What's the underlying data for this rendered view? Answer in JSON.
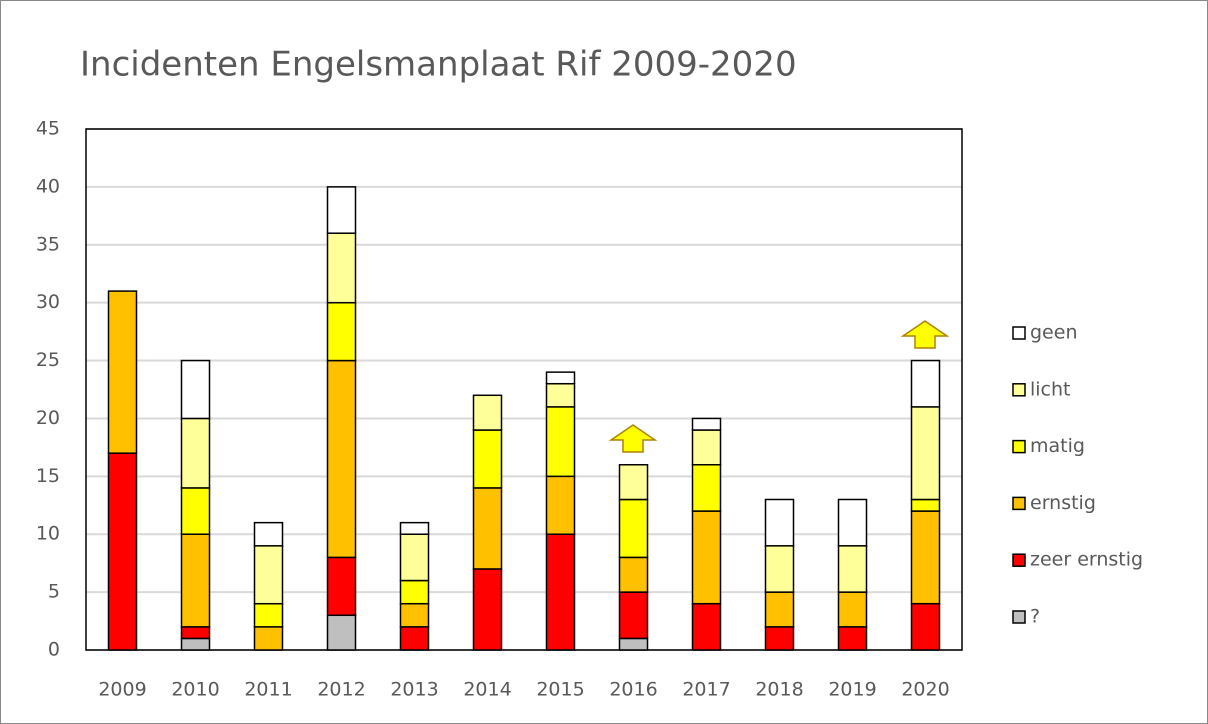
{
  "chart_data": {
    "type": "bar",
    "stacked": true,
    "title": "Incidenten Engelsmanplaat Rif 2009-2020",
    "categories": [
      "2009",
      "2010",
      "2011",
      "2012",
      "2013",
      "2014",
      "2015",
      "2016",
      "2017",
      "2018",
      "2019",
      "2020"
    ],
    "series": [
      {
        "name": "?",
        "color": "#bfbfbf",
        "values": [
          0,
          1,
          0,
          3,
          0,
          0,
          0,
          1,
          0,
          0,
          0,
          0
        ]
      },
      {
        "name": "zeer ernstig",
        "color": "#ff0000",
        "values": [
          17,
          1,
          0,
          5,
          2,
          7,
          10,
          4,
          4,
          2,
          2,
          4
        ]
      },
      {
        "name": "ernstig",
        "color": "#ffc000",
        "values": [
          14,
          8,
          2,
          17,
          2,
          7,
          5,
          3,
          8,
          3,
          3,
          8
        ]
      },
      {
        "name": "matig",
        "color": "#ffff00",
        "values": [
          0,
          4,
          2,
          5,
          2,
          5,
          6,
          5,
          4,
          0,
          0,
          1
        ]
      },
      {
        "name": "licht",
        "color": "#ffff99",
        "values": [
          0,
          6,
          5,
          6,
          4,
          3,
          2,
          3,
          3,
          4,
          4,
          8
        ]
      },
      {
        "name": "geen",
        "color": "#ffffff",
        "values": [
          0,
          5,
          2,
          4,
          1,
          0,
          1,
          0,
          1,
          4,
          4,
          4
        ]
      }
    ],
    "ylim": [
      0,
      45
    ],
    "yticks": [
      0,
      5,
      10,
      15,
      20,
      25,
      30,
      35,
      40,
      45
    ],
    "grid": true,
    "legend": "right"
  }
}
